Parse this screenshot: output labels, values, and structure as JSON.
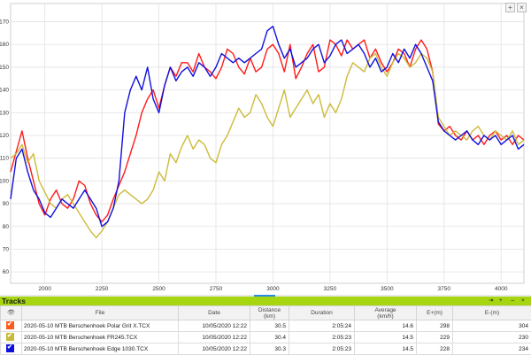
{
  "chart_data": {
    "type": "line",
    "x_ticks": [
      2000,
      2250,
      2500,
      2750,
      3000,
      3250,
      3500,
      3750,
      4000
    ],
    "y_ticks": [
      60,
      70,
      80,
      90,
      100,
      110,
      120,
      130,
      140,
      150,
      160,
      170
    ],
    "xlim": [
      1850,
      4100
    ],
    "ylim": [
      55,
      178
    ],
    "grid": true,
    "series": [
      {
        "name": "2020-05-10 MTB Berschenhoek Polar Grit X.TCX",
        "color": "#ff1a1a",
        "x": [
          1850,
          1875,
          1900,
          1925,
          1950,
          1975,
          2000,
          2025,
          2050,
          2075,
          2100,
          2125,
          2150,
          2175,
          2200,
          2225,
          2250,
          2275,
          2300,
          2325,
          2350,
          2375,
          2400,
          2425,
          2450,
          2475,
          2500,
          2525,
          2550,
          2575,
          2600,
          2625,
          2650,
          2675,
          2700,
          2725,
          2750,
          2775,
          2800,
          2825,
          2850,
          2875,
          2900,
          2925,
          2950,
          2975,
          3000,
          3025,
          3050,
          3075,
          3100,
          3125,
          3150,
          3175,
          3200,
          3225,
          3250,
          3275,
          3300,
          3325,
          3350,
          3375,
          3400,
          3425,
          3450,
          3475,
          3500,
          3525,
          3550,
          3575,
          3600,
          3625,
          3650,
          3675,
          3700,
          3725,
          3750,
          3775,
          3800,
          3825,
          3850,
          3875,
          3900,
          3925,
          3950,
          3975,
          4000,
          4025,
          4050,
          4075,
          4100
        ],
        "y": [
          104,
          113,
          122,
          110,
          100,
          90,
          85,
          92,
          96,
          90,
          88,
          92,
          100,
          98,
          90,
          85,
          82,
          85,
          92,
          98,
          104,
          112,
          120,
          130,
          136,
          140,
          132,
          142,
          150,
          146,
          152,
          152,
          148,
          156,
          150,
          148,
          145,
          150,
          158,
          156,
          150,
          147,
          154,
          148,
          150,
          158,
          160,
          156,
          148,
          160,
          145,
          150,
          156,
          160,
          148,
          150,
          162,
          160,
          155,
          162,
          158,
          160,
          162,
          154,
          158,
          152,
          148,
          152,
          158,
          156,
          150,
          158,
          162,
          158,
          148,
          125,
          122,
          124,
          120,
          118,
          122,
          118,
          120,
          116,
          120,
          122,
          118,
          120,
          116,
          120,
          118
        ]
      },
      {
        "name": "2020-05-10 MTB Berschenhoek FR245.TCX",
        "color": "#ccbb3a",
        "x": [
          1850,
          1875,
          1900,
          1925,
          1950,
          1975,
          2000,
          2025,
          2050,
          2075,
          2100,
          2125,
          2150,
          2175,
          2200,
          2225,
          2250,
          2275,
          2300,
          2325,
          2350,
          2375,
          2400,
          2425,
          2450,
          2475,
          2500,
          2525,
          2550,
          2575,
          2600,
          2625,
          2650,
          2675,
          2700,
          2725,
          2750,
          2775,
          2800,
          2825,
          2850,
          2875,
          2900,
          2925,
          2950,
          2975,
          3000,
          3025,
          3050,
          3075,
          3100,
          3125,
          3150,
          3175,
          3200,
          3225,
          3250,
          3275,
          3300,
          3325,
          3350,
          3375,
          3400,
          3425,
          3450,
          3475,
          3500,
          3525,
          3550,
          3575,
          3600,
          3625,
          3650,
          3675,
          3700,
          3725,
          3750,
          3775,
          3800,
          3825,
          3850,
          3875,
          3900,
          3925,
          3950,
          3975,
          4000,
          4025,
          4050,
          4075,
          4100
        ],
        "y": [
          110,
          112,
          116,
          108,
          112,
          100,
          95,
          90,
          88,
          92,
          94,
          90,
          86,
          82,
          78,
          75,
          78,
          82,
          88,
          94,
          96,
          94,
          92,
          90,
          92,
          96,
          104,
          100,
          112,
          108,
          115,
          120,
          114,
          118,
          116,
          110,
          108,
          116,
          120,
          126,
          132,
          128,
          130,
          138,
          134,
          128,
          124,
          132,
          140,
          128,
          132,
          136,
          140,
          134,
          138,
          128,
          134,
          130,
          136,
          146,
          152,
          150,
          148,
          154,
          156,
          150,
          146,
          152,
          156,
          154,
          150,
          152,
          156,
          154,
          148,
          128,
          124,
          120,
          122,
          120,
          118,
          122,
          124,
          120,
          118,
          122,
          120,
          118,
          122,
          116,
          118
        ]
      },
      {
        "name": "2020-05-10 MTB Berschenhoek Edge 1030.TCX",
        "color": "#1010dd",
        "x": [
          1850,
          1875,
          1900,
          1925,
          1950,
          1975,
          2000,
          2025,
          2050,
          2075,
          2100,
          2125,
          2150,
          2175,
          2200,
          2225,
          2250,
          2275,
          2300,
          2325,
          2350,
          2375,
          2400,
          2425,
          2450,
          2475,
          2500,
          2525,
          2550,
          2575,
          2600,
          2625,
          2650,
          2675,
          2700,
          2725,
          2750,
          2775,
          2800,
          2825,
          2850,
          2875,
          2900,
          2925,
          2950,
          2975,
          3000,
          3025,
          3050,
          3075,
          3100,
          3125,
          3150,
          3175,
          3200,
          3225,
          3250,
          3275,
          3300,
          3325,
          3350,
          3375,
          3400,
          3425,
          3450,
          3475,
          3500,
          3525,
          3550,
          3575,
          3600,
          3625,
          3650,
          3675,
          3700,
          3725,
          3750,
          3775,
          3800,
          3825,
          3850,
          3875,
          3900,
          3925,
          3950,
          3975,
          4000,
          4025,
          4050,
          4075,
          4100
        ],
        "y": [
          92,
          110,
          114,
          104,
          96,
          92,
          86,
          84,
          88,
          92,
          90,
          88,
          92,
          96,
          92,
          88,
          80,
          82,
          88,
          100,
          130,
          140,
          146,
          140,
          150,
          136,
          130,
          142,
          150,
          144,
          148,
          150,
          146,
          152,
          150,
          146,
          150,
          156,
          154,
          152,
          154,
          152,
          154,
          156,
          158,
          166,
          168,
          160,
          154,
          158,
          150,
          152,
          154,
          158,
          160,
          152,
          155,
          160,
          162,
          156,
          158,
          160,
          156,
          150,
          154,
          148,
          150,
          156,
          152,
          158,
          154,
          160,
          156,
          150,
          144,
          126,
          122,
          120,
          118,
          120,
          122,
          118,
          116,
          120,
          118,
          120,
          116,
          118,
          120,
          114,
          116
        ]
      }
    ]
  },
  "chart_buttons": {
    "plus": "+",
    "close": "×"
  },
  "tracks": {
    "title": "Tracks",
    "header_icons": {
      "pin": "⇥",
      "close": "×",
      "add": "+",
      "expand": "⇔"
    },
    "columns": {
      "visible": "👁",
      "file": "File",
      "date": "Date",
      "distance": "Distance",
      "distance_unit": "(km)",
      "duration": "Duration",
      "average": "Average",
      "average_unit": "(km/h)",
      "eplus": "E+(m)",
      "eminus": "E-(m)"
    },
    "rows": [
      {
        "color": "#ff5a1a",
        "file": "2020-05-10 MTB Berschenhoek Polar Grit X.TCX",
        "date": "10/05/2020 12:22",
        "distance": "30.5",
        "duration": "2:05:24",
        "average": "14.6",
        "eplus": "298",
        "eminus": "304"
      },
      {
        "color": "#c9b93a",
        "file": "2020-05-10 MTB Berschenhoek FR245.TCX",
        "date": "10/05/2020 12:22",
        "distance": "30.4",
        "duration": "2:05:23",
        "average": "14.5",
        "eplus": "229",
        "eminus": "230"
      },
      {
        "color": "#1010dd",
        "file": "2020-05-10 MTB Berschenhoek Edge 1030.TCX",
        "date": "10/05/2020 12:22",
        "distance": "30.3",
        "duration": "2:05:23",
        "average": "14.5",
        "eplus": "228",
        "eminus": "234"
      }
    ]
  }
}
